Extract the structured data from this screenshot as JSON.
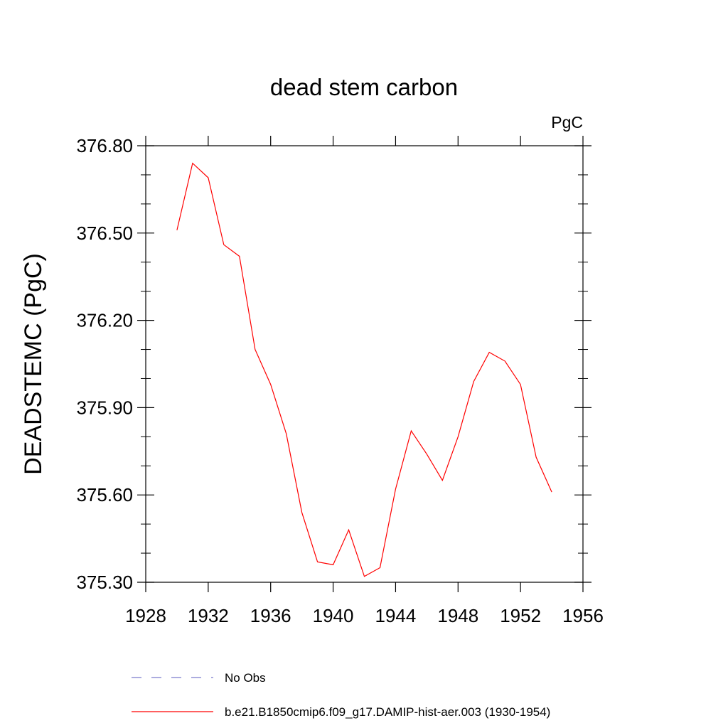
{
  "chart_data": {
    "type": "line",
    "title": "dead stem carbon",
    "units_label": "PgC",
    "ylabel": "DEADSTEMC  (PgC)",
    "xlabel": "",
    "xlim": [
      1928,
      1956
    ],
    "ylim": [
      375.3,
      376.8
    ],
    "x_ticks": [
      1928,
      1932,
      1936,
      1940,
      1944,
      1948,
      1952,
      1956
    ],
    "x_tick_labels": [
      "1928",
      "1932",
      "1936",
      "1940",
      "1944",
      "1948",
      "1952",
      "1956"
    ],
    "y_ticks": [
      375.3,
      375.6,
      375.9,
      376.2,
      376.5,
      376.8
    ],
    "y_tick_labels": [
      "375.30",
      "375.60",
      "375.90",
      "376.20",
      "376.50",
      "376.80"
    ],
    "grid": false,
    "legend_position": "bottom",
    "series": [
      {
        "name": "b.e21.B1850cmip6.f09_g17.DAMIP-hist-aer.003 (1930-1954)",
        "color": "#ff0000",
        "style": "solid",
        "x": [
          1930,
          1931,
          1932,
          1933,
          1934,
          1935,
          1936,
          1937,
          1938,
          1939,
          1940,
          1941,
          1942,
          1943,
          1944,
          1945,
          1946,
          1947,
          1948,
          1949,
          1950,
          1951,
          1952,
          1953,
          1954
        ],
        "y": [
          376.51,
          376.74,
          376.69,
          376.46,
          376.42,
          376.1,
          375.98,
          375.81,
          375.54,
          375.37,
          375.36,
          375.48,
          375.32,
          375.35,
          375.62,
          375.82,
          375.74,
          375.65,
          375.8,
          375.99,
          376.09,
          376.06,
          375.98,
          375.73,
          375.61
        ]
      }
    ],
    "legend": [
      {
        "label": "No Obs",
        "color": "#7a7acc",
        "style": "dashed"
      },
      {
        "label": "b.e21.B1850cmip6.f09_g17.DAMIP-hist-aer.003 (1930-1954)",
        "color": "#ff0000",
        "style": "solid"
      }
    ]
  }
}
